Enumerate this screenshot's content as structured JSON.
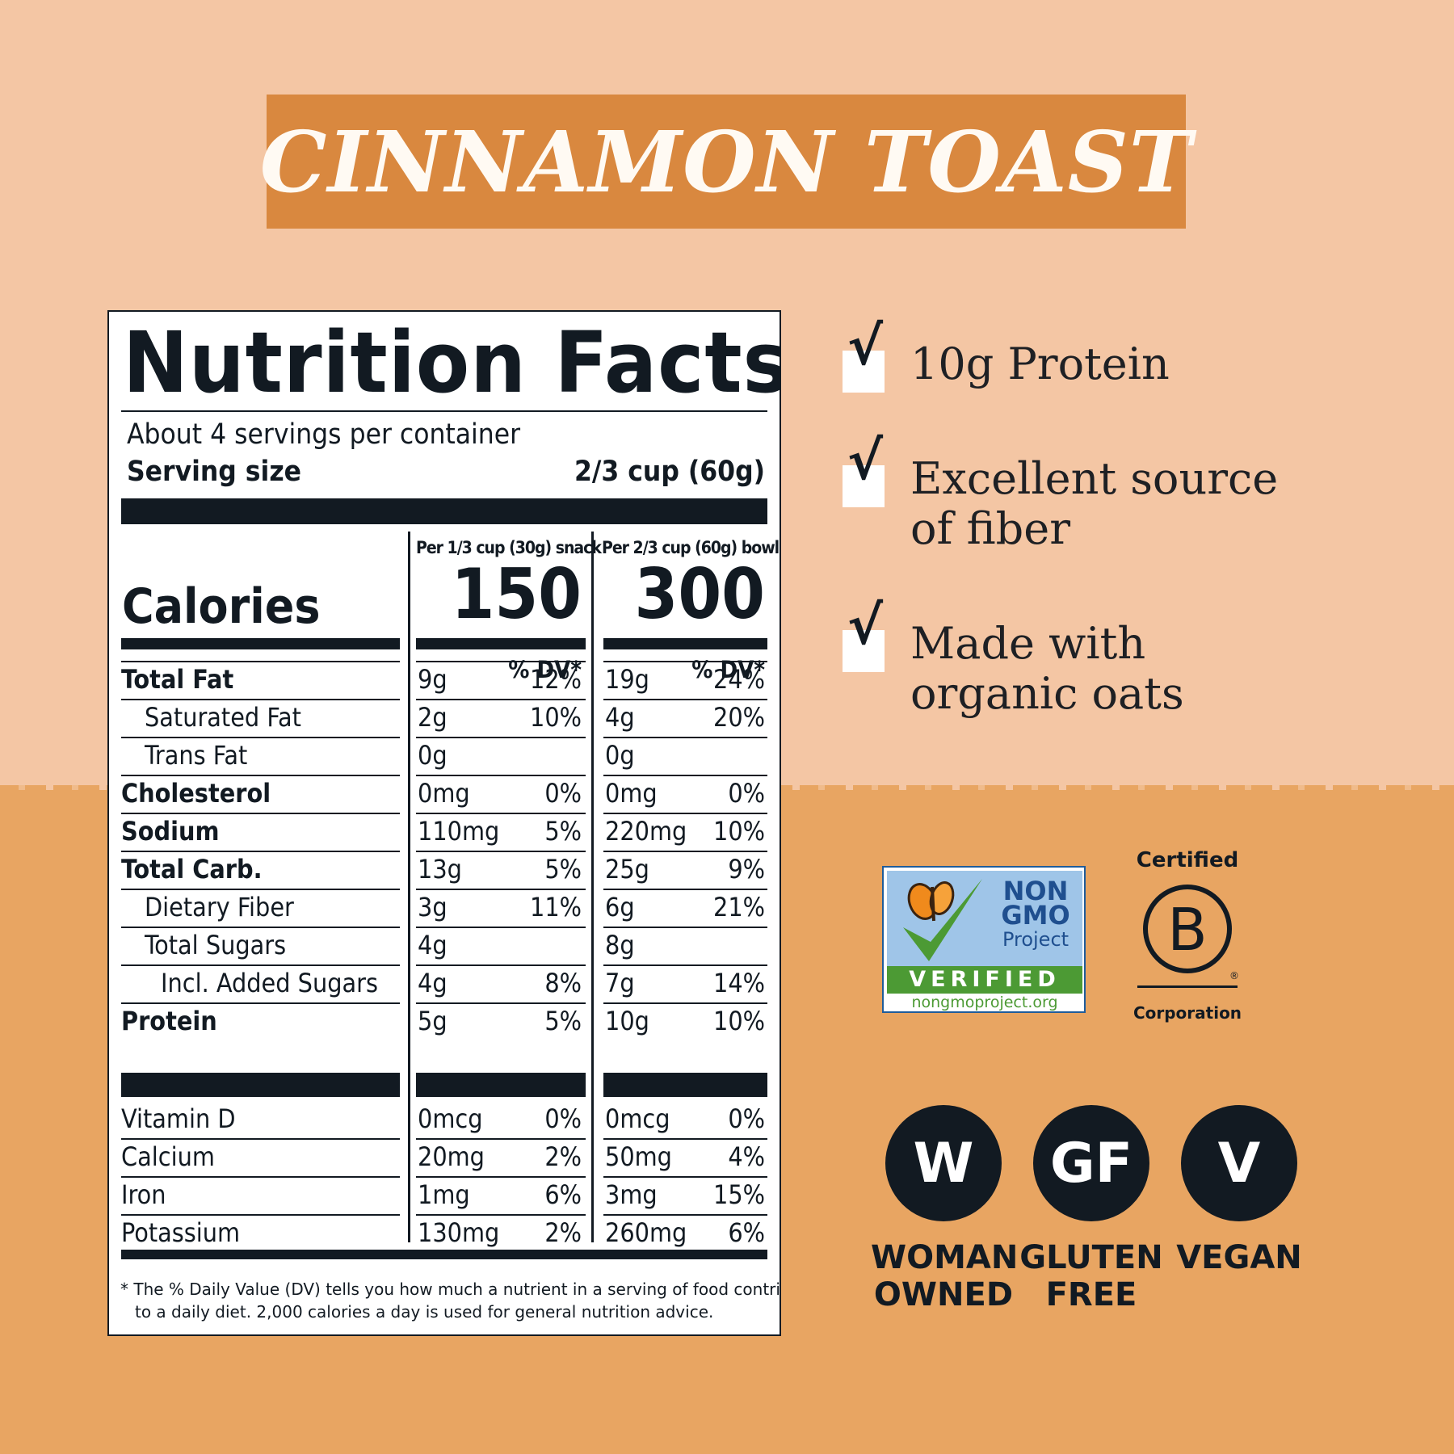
{
  "title": "CINNAMON TOAST",
  "nutrition": {
    "heading": "Nutrition Facts",
    "servings_per_container": "About 4 servings per container",
    "serving_size_label": "Serving size",
    "serving_size_value": "2/3 cup (60g)",
    "calories_label": "Calories",
    "columns": [
      {
        "header": "Per 1/3 cup (30g) snack",
        "calories": "150",
        "dv_header": "% DV*"
      },
      {
        "header": "Per 2/3 cup (60g) bowl",
        "calories": "300",
        "dv_header": "% DV*"
      }
    ],
    "rows": [
      {
        "label": "Total Fat",
        "indent": 0,
        "bold": true,
        "c1_amt": "9g",
        "c1_dv": "12%",
        "c2_amt": "19g",
        "c2_dv": "24%"
      },
      {
        "label": "Saturated Fat",
        "indent": 1,
        "bold": false,
        "c1_amt": "2g",
        "c1_dv": "10%",
        "c2_amt": "4g",
        "c2_dv": "20%"
      },
      {
        "label": "Trans Fat",
        "indent": 1,
        "bold": false,
        "c1_amt": "0g",
        "c1_dv": "",
        "c2_amt": "0g",
        "c2_dv": ""
      },
      {
        "label": "Cholesterol",
        "indent": 0,
        "bold": true,
        "c1_amt": "0mg",
        "c1_dv": "0%",
        "c2_amt": "0mg",
        "c2_dv": "0%"
      },
      {
        "label": "Sodium",
        "indent": 0,
        "bold": true,
        "c1_amt": "110mg",
        "c1_dv": "5%",
        "c2_amt": "220mg",
        "c2_dv": "10%"
      },
      {
        "label": "Total Carb.",
        "indent": 0,
        "bold": true,
        "c1_amt": "13g",
        "c1_dv": "5%",
        "c2_amt": "25g",
        "c2_dv": "9%"
      },
      {
        "label": "Dietary Fiber",
        "indent": 1,
        "bold": false,
        "c1_amt": "3g",
        "c1_dv": "11%",
        "c2_amt": "6g",
        "c2_dv": "21%"
      },
      {
        "label": "Total Sugars",
        "indent": 1,
        "bold": false,
        "c1_amt": "4g",
        "c1_dv": "",
        "c2_amt": "8g",
        "c2_dv": ""
      },
      {
        "label": "Incl. Added Sugars",
        "indent": 2,
        "bold": false,
        "c1_amt": "4g",
        "c1_dv": "8%",
        "c2_amt": "7g",
        "c2_dv": "14%"
      },
      {
        "label": "Protein",
        "indent": 0,
        "bold": true,
        "c1_amt": "5g",
        "c1_dv": "5%",
        "c2_amt": "10g",
        "c2_dv": "10%"
      }
    ],
    "vitamins": [
      {
        "label": "Vitamin D",
        "c1_amt": "0mcg",
        "c1_dv": "0%",
        "c2_amt": "0mcg",
        "c2_dv": "0%"
      },
      {
        "label": "Calcium",
        "c1_amt": "20mg",
        "c1_dv": "2%",
        "c2_amt": "50mg",
        "c2_dv": "4%"
      },
      {
        "label": "Iron",
        "c1_amt": "1mg",
        "c1_dv": "6%",
        "c2_amt": "3mg",
        "c2_dv": "15%"
      },
      {
        "label": "Potassium",
        "c1_amt": "130mg",
        "c1_dv": "2%",
        "c2_amt": "260mg",
        "c2_dv": "6%"
      }
    ],
    "footnote_line1": "* The % Daily Value (DV) tells you how much a nutrient in a serving of food contributes",
    "footnote_line2": "to a daily diet. 2,000 calories a day is used for general nutrition advice."
  },
  "claims": [
    {
      "lines": [
        "10g Protein"
      ]
    },
    {
      "lines": [
        "Excellent source",
        "of fiber"
      ]
    },
    {
      "lines": [
        "Made with",
        "organic oats"
      ]
    }
  ],
  "check_icon": "checkmark-icon",
  "certifications": {
    "nongmo": {
      "line1": "NON",
      "line2": "GMO",
      "line3": "Project",
      "verified": "VERIFIED",
      "url": "nongmoproject.org"
    },
    "bcorp": {
      "top": "Certified",
      "letter": "B",
      "bottom": "Corporation",
      "mark": "®"
    }
  },
  "badges": [
    {
      "symbol": "W",
      "caption": [
        "WOMAN",
        "OWNED"
      ]
    },
    {
      "symbol": "GF",
      "caption": [
        "GLUTEN",
        "FREE"
      ]
    },
    {
      "symbol": "V",
      "caption": [
        "VEGAN"
      ]
    }
  ],
  "colors": {
    "banner": "#d9883f",
    "bg_top": "#f4c6a4",
    "bg_bottom": "#e8a562",
    "ink": "#121a22",
    "nongmo_green": "#4c9a34",
    "nongmo_blue": "#9fc5e8"
  }
}
